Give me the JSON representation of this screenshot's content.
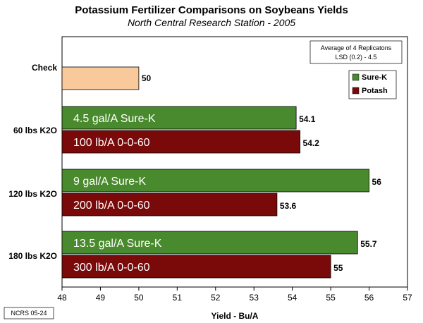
{
  "chart_data": {
    "type": "bar",
    "orientation": "horizontal",
    "title": "Potassium Fertilizer Comparisons on Soybeans Yields",
    "subtitle": "North Central Research Station - 2005",
    "xlabel": "Yield - Bu/A",
    "xlim": [
      48,
      57
    ],
    "xticks": [
      "48",
      "49",
      "50",
      "51",
      "52",
      "53",
      "54",
      "55",
      "56",
      "57"
    ],
    "categories": [
      "Check",
      "60 lbs K2O",
      "120 lbs K2O",
      "180 lbs K2O"
    ],
    "check": {
      "value": 50,
      "label": "50",
      "color": "#f7c99b"
    },
    "series": [
      {
        "name": "Sure-K",
        "color": "#4a8a2e",
        "values": [
          null,
          54.1,
          56,
          55.7
        ],
        "value_labels": [
          "",
          "54.1",
          "56",
          "55.7"
        ],
        "bar_texts": [
          "",
          "4.5 gal/A Sure-K",
          "9 gal/A Sure-K",
          "13.5 gal/A Sure-K"
        ]
      },
      {
        "name": "Potash",
        "color": "#7a0a0a",
        "values": [
          null,
          54.2,
          53.6,
          55
        ],
        "value_labels": [
          "",
          "54.2",
          "53.6",
          "55"
        ],
        "bar_texts": [
          "",
          "100 lb/A 0-0-60",
          "200 lb/A 0-0-60",
          "300 lb/A 0-0-60"
        ]
      }
    ],
    "note": [
      "Average of 4 Replicatons",
      "LSD (0.2) - 4.5"
    ],
    "legend_position": "right",
    "grid": false
  },
  "footer": "NCRS 05-24"
}
